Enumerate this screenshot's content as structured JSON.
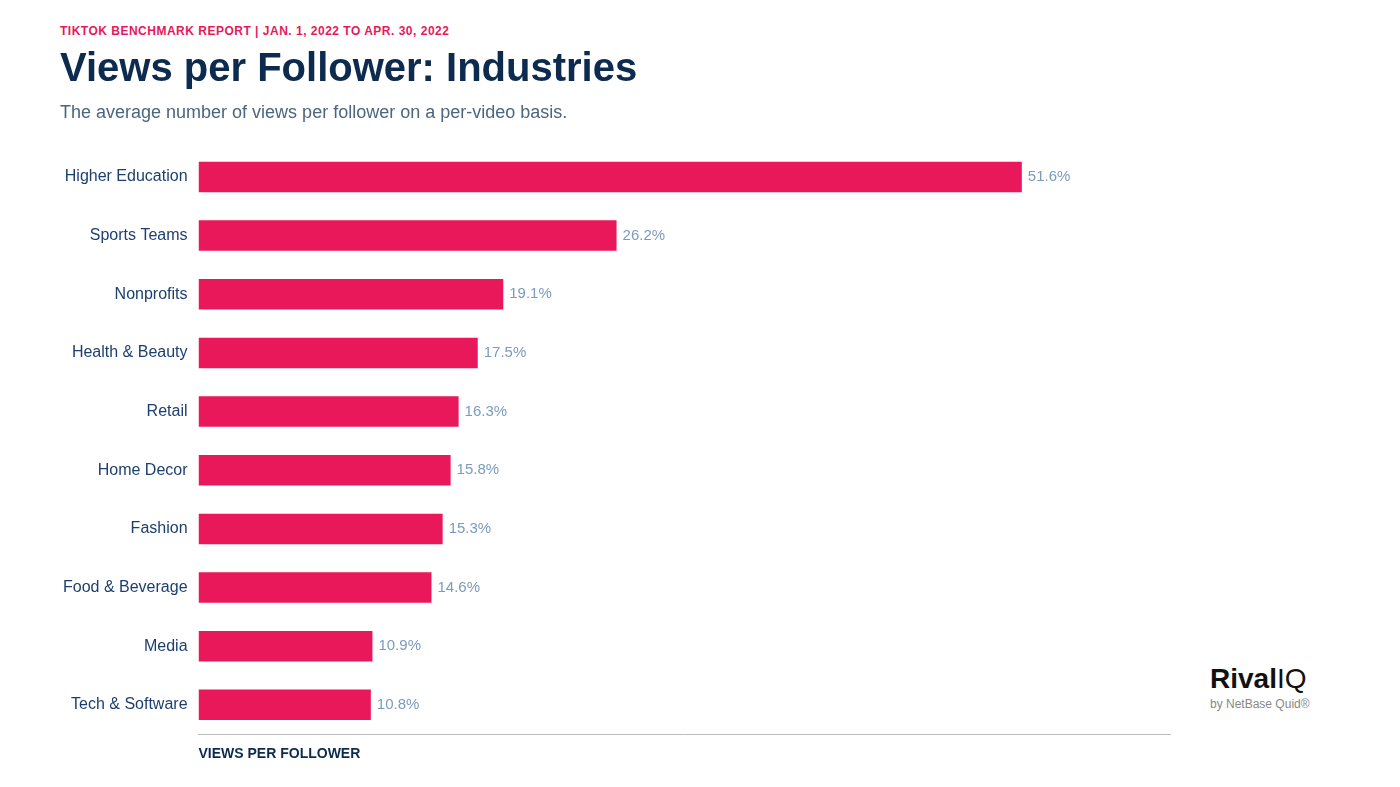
{
  "chart_data": {
    "type": "bar",
    "orientation": "horizontal",
    "title": "Views per Follower: Industries",
    "subtitle": "The average number of views per follower on a per-video basis.",
    "xlabel": "VIEWS PER FOLLOWER",
    "annotations": [
      "TIKTOK BENCHMARK REPORT  |  JAN. 1, 2022 TO APR. 30, 2022",
      "Rival",
      "IQ",
      "by NetBase Quid®"
    ],
    "categories": [
      "Higher Education",
      "Sports Teams",
      "Nonprofits",
      "Health & Beauty",
      "Retail",
      "Home Decor",
      "Fashion",
      "Food & Beverage",
      "Media",
      "Tech & Software"
    ],
    "values": [
      51.6,
      26.2,
      19.1,
      17.5,
      16.3,
      15.8,
      15.3,
      14.6,
      10.9,
      10.8
    ],
    "value_labels": [
      "51.6%",
      "26.2%",
      "19.1%",
      "17.5%",
      "16.3%",
      "15.8%",
      "15.3%",
      "14.6%",
      "10.9%",
      "10.8%"
    ],
    "data_labels": true,
    "color": "#E8185A",
    "xlim": [
      0,
      60.888
    ],
    "grid": false,
    "tick_labels": "y"
  }
}
